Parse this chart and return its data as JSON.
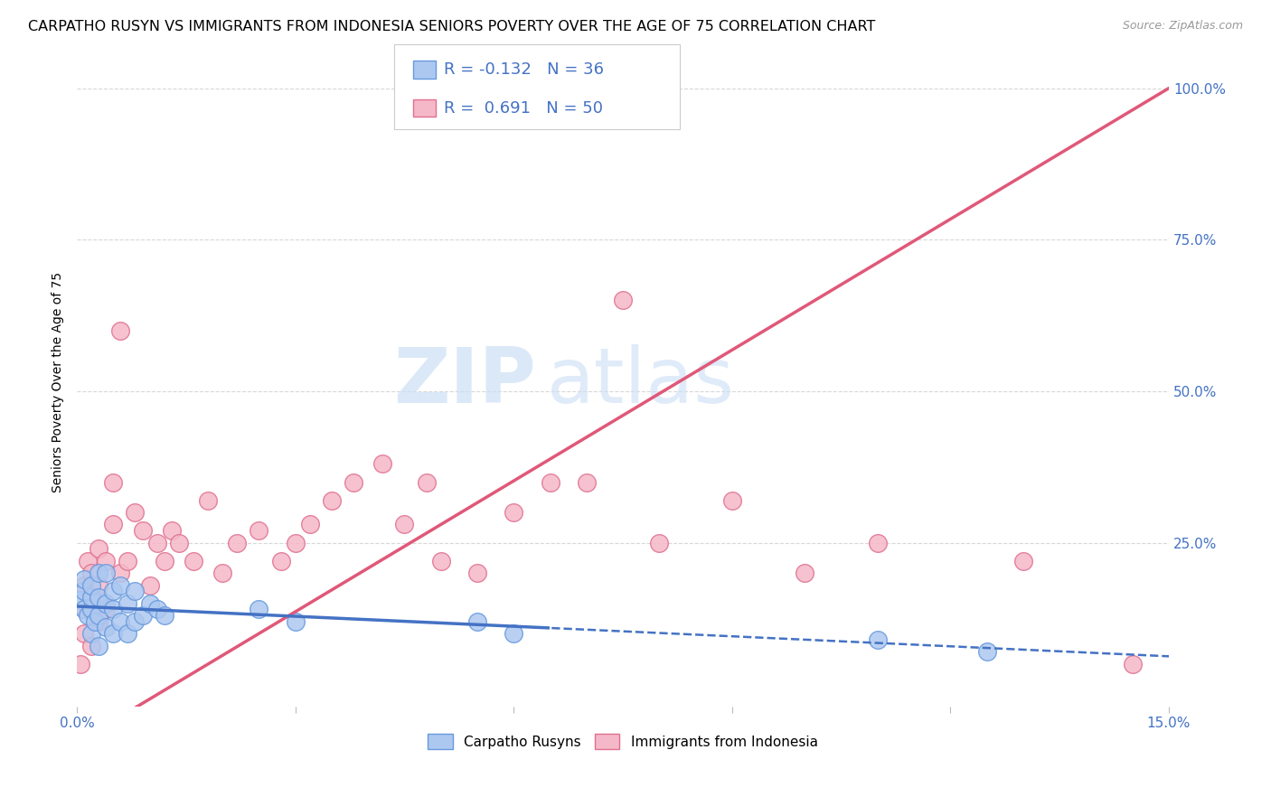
{
  "title": "CARPATHO RUSYN VS IMMIGRANTS FROM INDONESIA SENIORS POVERTY OVER THE AGE OF 75 CORRELATION CHART",
  "source": "Source: ZipAtlas.com",
  "ylabel_label": "Seniors Poverty Over the Age of 75",
  "x_min": 0.0,
  "x_max": 0.15,
  "y_min": -0.02,
  "y_max": 1.05,
  "background_color": "#ffffff",
  "grid_color": "#d8d8d8",
  "watermark_zip": "ZIP",
  "watermark_atlas": "atlas",
  "carpatho_scatter_x": [
    0.0005,
    0.001,
    0.001,
    0.001,
    0.0015,
    0.002,
    0.002,
    0.002,
    0.002,
    0.0025,
    0.003,
    0.003,
    0.003,
    0.003,
    0.004,
    0.004,
    0.004,
    0.005,
    0.005,
    0.005,
    0.006,
    0.006,
    0.007,
    0.007,
    0.008,
    0.008,
    0.009,
    0.01,
    0.011,
    0.012,
    0.025,
    0.03,
    0.055,
    0.06,
    0.11,
    0.125
  ],
  "carpatho_scatter_y": [
    0.155,
    0.14,
    0.17,
    0.19,
    0.13,
    0.1,
    0.14,
    0.16,
    0.18,
    0.12,
    0.08,
    0.13,
    0.16,
    0.2,
    0.11,
    0.15,
    0.2,
    0.1,
    0.14,
    0.17,
    0.12,
    0.18,
    0.1,
    0.15,
    0.12,
    0.17,
    0.13,
    0.15,
    0.14,
    0.13,
    0.14,
    0.12,
    0.12,
    0.1,
    0.09,
    0.07
  ],
  "indonesia_scatter_x": [
    0.0005,
    0.001,
    0.001,
    0.001,
    0.0015,
    0.002,
    0.002,
    0.002,
    0.003,
    0.003,
    0.003,
    0.004,
    0.004,
    0.005,
    0.005,
    0.006,
    0.006,
    0.007,
    0.008,
    0.009,
    0.01,
    0.011,
    0.012,
    0.013,
    0.014,
    0.016,
    0.018,
    0.02,
    0.022,
    0.025,
    0.028,
    0.03,
    0.032,
    0.035,
    0.038,
    0.042,
    0.045,
    0.048,
    0.05,
    0.055,
    0.06,
    0.065,
    0.07,
    0.075,
    0.08,
    0.09,
    0.1,
    0.11,
    0.13,
    0.145
  ],
  "indonesia_scatter_y": [
    0.05,
    0.1,
    0.14,
    0.18,
    0.22,
    0.08,
    0.16,
    0.2,
    0.12,
    0.18,
    0.24,
    0.14,
    0.22,
    0.28,
    0.35,
    0.2,
    0.6,
    0.22,
    0.3,
    0.27,
    0.18,
    0.25,
    0.22,
    0.27,
    0.25,
    0.22,
    0.32,
    0.2,
    0.25,
    0.27,
    0.22,
    0.25,
    0.28,
    0.32,
    0.35,
    0.38,
    0.28,
    0.35,
    0.22,
    0.2,
    0.3,
    0.35,
    0.35,
    0.65,
    0.25,
    0.32,
    0.2,
    0.25,
    0.22,
    0.05
  ],
  "carpatho_color": "#adc8f0",
  "carpatho_edge_color": "#6699dd",
  "indonesia_color": "#f5b8c8",
  "indonesia_edge_color": "#e07090",
  "carpatho_line_color": "#4472c4",
  "indonesia_line_color": "#e05878",
  "carpatho_line_solid_end": 0.065,
  "indonesia_line_end": 0.15,
  "title_fontsize": 11.5,
  "source_fontsize": 9,
  "axis_label_fontsize": 10,
  "tick_fontsize": 11,
  "legend_fontsize": 13,
  "R_carpatho": -0.132,
  "N_carpatho": 36,
  "R_indonesia": 0.691,
  "N_indonesia": 50,
  "indonesia_line_intercept": -0.08,
  "indonesia_line_slope": 7.2,
  "carpatho_line_intercept": 0.145,
  "carpatho_line_slope": -0.55
}
